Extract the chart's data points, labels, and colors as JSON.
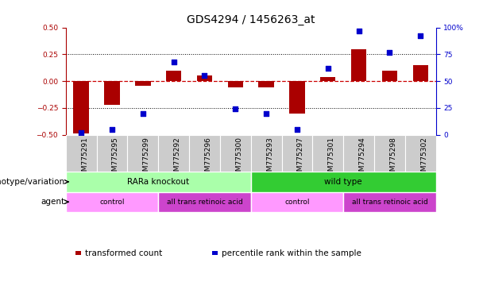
{
  "title": "GDS4294 / 1456263_at",
  "samples": [
    "GSM775291",
    "GSM775295",
    "GSM775299",
    "GSM775292",
    "GSM775296",
    "GSM775300",
    "GSM775293",
    "GSM775297",
    "GSM775301",
    "GSM775294",
    "GSM775298",
    "GSM775302"
  ],
  "bar_values": [
    -0.49,
    -0.22,
    -0.04,
    0.1,
    0.05,
    -0.06,
    -0.06,
    -0.3,
    0.04,
    0.3,
    0.1,
    0.15
  ],
  "dot_values": [
    2,
    5,
    20,
    68,
    55,
    24,
    20,
    5,
    62,
    97,
    77,
    92
  ],
  "ylim_left": [
    -0.5,
    0.5
  ],
  "ylim_right": [
    0,
    100
  ],
  "yticks_left": [
    -0.5,
    -0.25,
    0,
    0.25,
    0.5
  ],
  "yticks_right": [
    0,
    25,
    50,
    75,
    100
  ],
  "bar_color": "#AA0000",
  "dot_color": "#0000CC",
  "zero_line_color": "#CC0000",
  "dotted_line_color": "#000000",
  "bg_color": "#FFFFFF",
  "plot_bg": "#FFFFFF",
  "tick_bg_color": "#CCCCCC",
  "genotype_groups": [
    {
      "label": "RARa knockout",
      "start": 0,
      "end": 6,
      "color": "#AAFFAA"
    },
    {
      "label": "wild type",
      "start": 6,
      "end": 12,
      "color": "#33CC33"
    }
  ],
  "agent_groups": [
    {
      "label": "control",
      "start": 0,
      "end": 3,
      "color": "#FF99FF"
    },
    {
      "label": "all trans retinoic acid",
      "start": 3,
      "end": 6,
      "color": "#CC44CC"
    },
    {
      "label": "control",
      "start": 6,
      "end": 9,
      "color": "#FF99FF"
    },
    {
      "label": "all trans retinoic acid",
      "start": 9,
      "end": 12,
      "color": "#CC44CC"
    }
  ],
  "legend_items": [
    {
      "label": "transformed count",
      "color": "#AA0000"
    },
    {
      "label": "percentile rank within the sample",
      "color": "#0000CC"
    }
  ],
  "tick_fontsize": 6.5,
  "title_fontsize": 10,
  "label_fontsize": 7.5,
  "annot_fontsize": 7.5
}
